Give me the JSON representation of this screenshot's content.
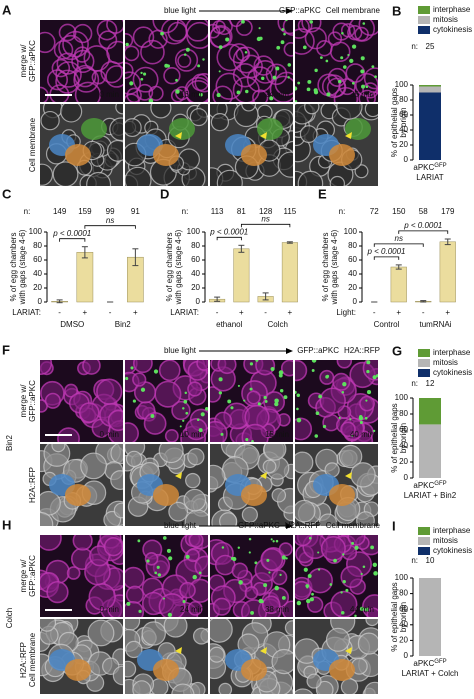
{
  "figure": {
    "panels": [
      {
        "label": "A",
        "stimulus": "blue light",
        "channels": [
          {
            "text": "GFP::aPKC",
            "color": "#3a9a3a"
          },
          {
            "text": "Cell membrane",
            "color": "#b5309f"
          }
        ],
        "condition": null,
        "rows": [
          {
            "lines": [
              {
                "text": "merge w/",
                "color": "#000000"
              },
              {
                "text": "GFP::aPKC",
                "color": "#3a9a3a"
              }
            ]
          },
          {
            "lines": [
              {
                "text": "Cell membrane",
                "color": "#b5309f"
              }
            ]
          }
        ],
        "times": [
          "0 min",
          "16 min",
          "24 min",
          "35 min"
        ]
      },
      {
        "label": "F",
        "stimulus": "blue light",
        "channels": [
          {
            "text": "GFP::aPKC",
            "color": "#3a9a3a"
          },
          {
            "text": "H2A::RFP",
            "color": "#b5309f"
          }
        ],
        "condition": "Bin2",
        "rows": [
          {
            "lines": [
              {
                "text": "merge w/",
                "color": "#000000"
              },
              {
                "text": "GFP::aPKC",
                "color": "#3a9a3a"
              }
            ]
          },
          {
            "lines": [
              {
                "text": "H2A::RFP",
                "color": "#b5309f"
              }
            ]
          }
        ],
        "times": [
          "0 min",
          "10 min",
          "15 min",
          "40 min"
        ]
      },
      {
        "label": "H",
        "stimulus": "blue light",
        "channels": [
          {
            "text": "GFP::aPKC",
            "color": "#3a9a3a"
          },
          {
            "text": "H2A::RFP",
            "color": "#b5309f"
          },
          {
            "text": "Cell membrane",
            "color": "#b5309f"
          }
        ],
        "condition": "Colch",
        "rows": [
          {
            "lines": [
              {
                "text": "merge w/",
                "color": "#000000"
              },
              {
                "text": "GFP::aPKC",
                "color": "#3a9a3a"
              }
            ]
          },
          {
            "lines": [
              {
                "text": "H2A::RFP",
                "color": "#b5309f"
              },
              {
                "text": "Cell membrane",
                "color": "#b5309f"
              }
            ]
          }
        ],
        "times": [
          "0 min",
          "24 min",
          "38 min",
          "44 min"
        ]
      }
    ]
  },
  "chart_data": [
    {
      "type": "stacked-bar",
      "label": "B",
      "y_label": [
        "% of epithelial gaps",
        "by origin"
      ],
      "n_label": "n:",
      "n": [
        25
      ],
      "category_text": [
        {
          "base": "aPKC",
          "sup": "GFP",
          "line2": "LARIAT"
        }
      ],
      "series": [
        {
          "name": "interphase",
          "color": "#5f9b35",
          "values": [
            2
          ]
        },
        {
          "name": "mitosis",
          "color": "#b5b5b5",
          "values": [
            8
          ]
        },
        {
          "name": "cytokinesis",
          "color": "#0f2f6a",
          "values": [
            90
          ]
        }
      ],
      "ylim": [
        0,
        100
      ],
      "yticks": [
        0,
        20,
        40,
        60,
        80,
        100
      ]
    },
    {
      "type": "bar",
      "label": "C",
      "y_label": [
        "% of egg chambers",
        "with gaps (stage 4-6)"
      ],
      "n_label": "n:",
      "n": [
        149,
        159,
        99,
        91
      ],
      "categories": [
        "-",
        "+",
        "-",
        "+"
      ],
      "row_label": "LARIAT:",
      "groups": [
        "DMSO",
        "Bin2"
      ],
      "values": [
        1,
        71,
        0,
        64
      ],
      "errors": [
        2,
        8,
        0,
        12
      ],
      "color": "#ebdd9e",
      "brackets": [
        {
          "text": "p < 0.0001",
          "between": [
            0,
            1
          ]
        },
        {
          "text": "ns",
          "between": [
            1,
            3
          ]
        }
      ],
      "ylim": [
        0,
        100
      ],
      "yticks": [
        0,
        20,
        40,
        60,
        80,
        100
      ]
    },
    {
      "type": "bar",
      "label": "D",
      "y_label": [
        "% of egg chambers",
        "with gaps (stage 4-6)"
      ],
      "n_label": "n:",
      "n": [
        113,
        81,
        128,
        115
      ],
      "categories": [
        "-",
        "+",
        "-",
        "+"
      ],
      "row_label": "LARIAT:",
      "groups": [
        "ethanol",
        "Colch"
      ],
      "values": [
        4,
        76,
        8,
        85
      ],
      "errors": [
        3,
        5,
        5,
        1
      ],
      "color": "#ebdd9e",
      "brackets": [
        {
          "text": "p < 0.0001",
          "between": [
            0,
            1
          ]
        },
        {
          "text": "ns",
          "between": [
            1,
            3
          ]
        }
      ],
      "ylim": [
        0,
        100
      ],
      "yticks": [
        0,
        20,
        40,
        60,
        80,
        100
      ]
    },
    {
      "type": "bar",
      "label": "E",
      "y_label": [
        "% of egg chambers",
        "with gaps (stage 4-6)"
      ],
      "n_label": "n:",
      "n": [
        72,
        150,
        58,
        179
      ],
      "categories": [
        "-",
        "+",
        "-",
        "+"
      ],
      "row_label": "Light:",
      "groups": [
        "Control",
        "tumRNAi"
      ],
      "values": [
        0,
        50,
        1,
        86
      ],
      "errors": [
        0,
        3,
        1,
        4
      ],
      "color": "#ebdd9e",
      "brackets": [
        {
          "text": "p < 0.0001",
          "between": [
            0,
            1
          ]
        },
        {
          "text": "ns",
          "between": [
            0,
            2
          ]
        },
        {
          "text": "p < 0.0001",
          "between": [
            1,
            3
          ]
        }
      ],
      "ylim": [
        0,
        100
      ],
      "yticks": [
        0,
        20,
        40,
        60,
        80,
        100
      ]
    },
    {
      "type": "stacked-bar",
      "label": "G",
      "y_label": [
        "% of epithelial gaps",
        "by origin"
      ],
      "n_label": "n:",
      "n": [
        12
      ],
      "category_text": [
        {
          "base": "aPKC",
          "sup": "GFP",
          "line2": "LARIAT + Bin2"
        }
      ],
      "series": [
        {
          "name": "interphase",
          "color": "#5f9b35",
          "values": [
            33
          ]
        },
        {
          "name": "mitosis",
          "color": "#b5b5b5",
          "values": [
            67
          ]
        },
        {
          "name": "cytokinesis",
          "color": "#0f2f6a",
          "values": [
            0
          ]
        }
      ],
      "ylim": [
        0,
        100
      ],
      "yticks": [
        0,
        20,
        40,
        60,
        80,
        100
      ]
    },
    {
      "type": "stacked-bar",
      "label": "I",
      "y_label": [
        "% of epithelial gaps",
        "by origin"
      ],
      "n_label": "n:",
      "n": [
        10
      ],
      "category_text": [
        {
          "base": "aPKC",
          "sup": "GFP",
          "line2": "LARIAT + Colch"
        }
      ],
      "series": [
        {
          "name": "interphase",
          "color": "#5f9b35",
          "values": [
            0
          ]
        },
        {
          "name": "mitosis",
          "color": "#b5b5b5",
          "values": [
            100
          ]
        },
        {
          "name": "cytokinesis",
          "color": "#0f2f6a",
          "values": [
            0
          ]
        }
      ],
      "ylim": [
        0,
        100
      ],
      "yticks": [
        0,
        20,
        40,
        60,
        80,
        100
      ]
    }
  ]
}
